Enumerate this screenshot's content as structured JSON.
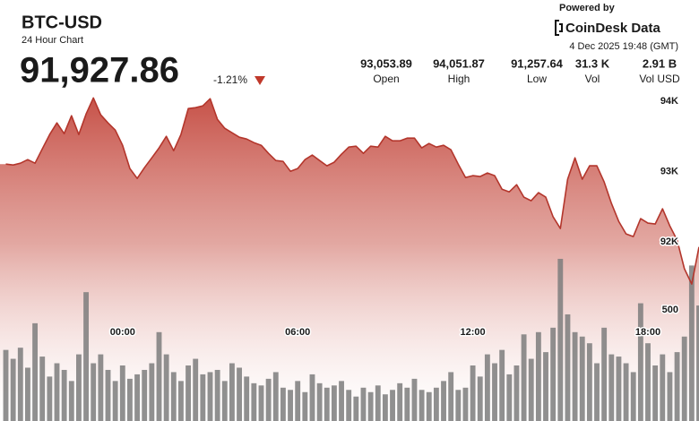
{
  "header": {
    "title": "BTC-USD",
    "subtitle": "24 Hour Chart",
    "price": "91,927.86",
    "change": "-1.21%"
  },
  "stats": [
    {
      "value": "93,053.89",
      "label": "Open"
    },
    {
      "value": "94,051.87",
      "label": "High"
    },
    {
      "value": "91,257.64",
      "label": "Low"
    },
    {
      "value": "31.3 K",
      "label": "Vol"
    },
    {
      "value": "2.91 B",
      "label": "Vol USD"
    }
  ],
  "attribution": {
    "powered_by": "Powered by",
    "brand": "CoinDesk Data",
    "timestamp": "4 Dec 2025 19:48 (GMT)"
  },
  "chart_data": {
    "type": "line",
    "area": true,
    "x": [
      -4,
      -3.75,
      -3.5,
      -3.25,
      -3,
      -2.75,
      -2.5,
      -2.25,
      -2,
      -1.75,
      -1.5,
      -1.25,
      -1,
      -0.75,
      -0.5,
      -0.25,
      0,
      0.25,
      0.5,
      0.75,
      1,
      1.25,
      1.5,
      1.75,
      2,
      2.25,
      2.5,
      2.75,
      3,
      3.25,
      3.5,
      3.75,
      4,
      4.25,
      4.5,
      4.75,
      5,
      5.25,
      5.5,
      5.75,
      6,
      6.25,
      6.5,
      6.75,
      7,
      7.25,
      7.5,
      7.75,
      8,
      8.25,
      8.5,
      8.75,
      9,
      9.25,
      9.5,
      9.75,
      10,
      10.25,
      10.5,
      10.75,
      11,
      11.25,
      11.5,
      11.75,
      12,
      12.25,
      12.5,
      12.75,
      13,
      13.25,
      13.5,
      13.75,
      14,
      14.25,
      14.5,
      14.75,
      15,
      15.25,
      15.5,
      15.75,
      16,
      16.25,
      16.5,
      16.75,
      17,
      17.25,
      17.5,
      17.75,
      18,
      18.25,
      18.5,
      18.75,
      19,
      19.25,
      19.5,
      19.75
    ],
    "xlim": [
      -4.2,
      19.75
    ],
    "xticks": [
      {
        "value": 0,
        "label": "00:00"
      },
      {
        "value": 6,
        "label": "06:00"
      },
      {
        "value": 12,
        "label": "12:00"
      },
      {
        "value": 18,
        "label": "18:00"
      }
    ],
    "ylim": [
      91000,
      94500
    ],
    "yticks": [
      {
        "value": 92000,
        "label": "92K"
      },
      {
        "value": 93000,
        "label": "93K"
      },
      {
        "value": 94000,
        "label": "94K"
      }
    ],
    "y2lim": [
      0,
      750
    ],
    "y2ticks": [
      500
    ],
    "series": [
      {
        "color": "#b3362c",
        "values": [
          93108,
          93095,
          93121,
          93172,
          93121,
          93325,
          93529,
          93694,
          93541,
          93796,
          93529,
          93822,
          94050,
          93809,
          93694,
          93592,
          93376,
          93045,
          92904,
          93057,
          93197,
          93338,
          93503,
          93299,
          93529,
          93898,
          93911,
          93936,
          94038,
          93745,
          93618,
          93554,
          93490,
          93465,
          93414,
          93376,
          93261,
          93159,
          93146,
          93006,
          93045,
          93172,
          93236,
          93159,
          93083,
          93134,
          93248,
          93350,
          93363,
          93261,
          93363,
          93350,
          93503,
          93439,
          93439,
          93478,
          93478,
          93338,
          93401,
          93350,
          93376,
          93312,
          93108,
          92917,
          92943,
          92930,
          92981,
          92943,
          92751,
          92713,
          92815,
          92637,
          92586,
          92701,
          92637,
          92357,
          92191,
          92892,
          93197,
          92892,
          93083,
          93083,
          92853,
          92548,
          92293,
          92114,
          92076,
          92331,
          92267,
          92255,
          92471,
          92229,
          92025,
          91618,
          91400,
          91928
        ]
      },
      {
        "type": "bar",
        "axis": "y2",
        "color": "#7d7d7d",
        "values": [
          320,
          280,
          330,
          240,
          440,
          290,
          200,
          260,
          230,
          180,
          300,
          580,
          260,
          300,
          230,
          180,
          250,
          190,
          210,
          230,
          260,
          400,
          300,
          220,
          180,
          250,
          280,
          210,
          220,
          230,
          180,
          260,
          240,
          200,
          170,
          160,
          190,
          220,
          150,
          140,
          180,
          130,
          210,
          170,
          150,
          160,
          180,
          140,
          110,
          150,
          130,
          160,
          120,
          140,
          170,
          150,
          190,
          140,
          130,
          150,
          180,
          220,
          140,
          150,
          250,
          200,
          300,
          260,
          320,
          210,
          250,
          390,
          280,
          400,
          310,
          420,
          730,
          480,
          400,
          380,
          350,
          260,
          420,
          300,
          290,
          260,
          220,
          530,
          350,
          250,
          300,
          220,
          310,
          380,
          700,
          520
        ]
      }
    ]
  }
}
